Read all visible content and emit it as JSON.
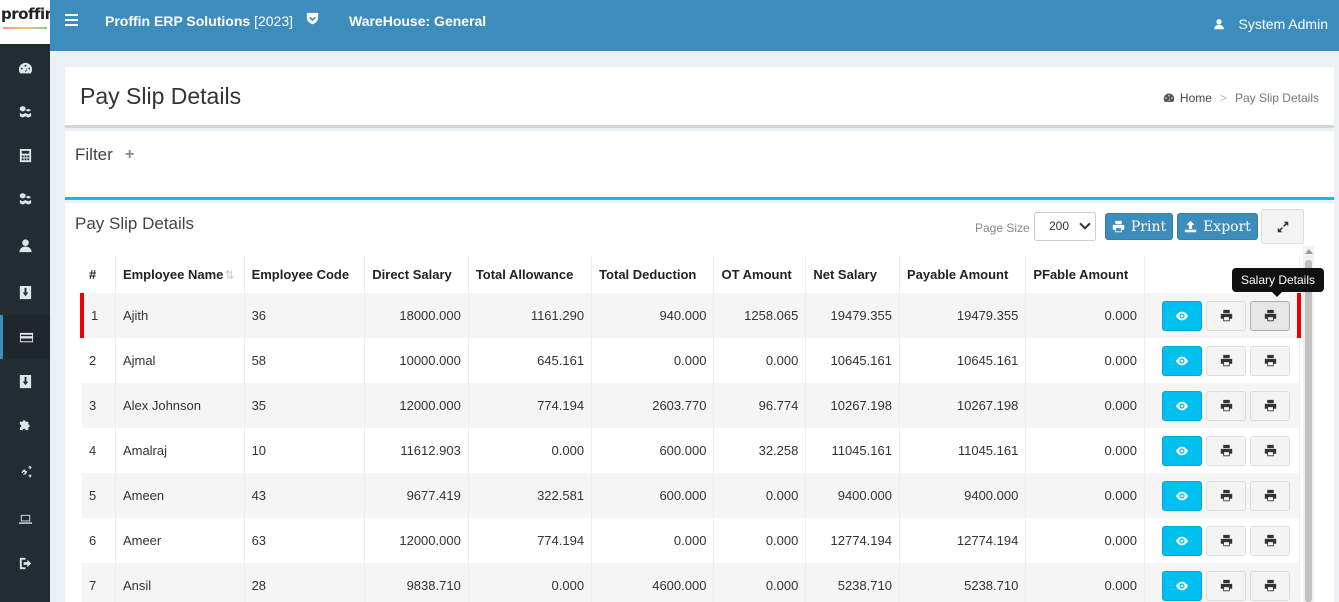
{
  "logo": {
    "text": "proffin"
  },
  "sidebar": {
    "items": [
      {
        "icon": "dashboard-icon"
      },
      {
        "icon": "cubes-icon"
      },
      {
        "icon": "calculator-icon"
      },
      {
        "icon": "cubes-icon"
      },
      {
        "icon": "user-icon"
      },
      {
        "icon": "download-icon"
      },
      {
        "icon": "credit-card-icon",
        "active": true
      },
      {
        "icon": "download-icon"
      },
      {
        "icon": "puzzle-icon"
      },
      {
        "icon": "cogs-icon"
      },
      {
        "icon": "laptop-icon"
      },
      {
        "icon": "sign-out-icon"
      }
    ]
  },
  "header": {
    "company": "Proffin ERP Solutions",
    "year": "[2023]",
    "warehouse": "WareHouse: General",
    "user": "System Admin"
  },
  "page": {
    "title": "Pay Slip Details",
    "breadcrumb": {
      "home": "Home",
      "separator": ">",
      "current": "Pay Slip Details"
    }
  },
  "filter": {
    "title": "Filter",
    "toggle": "+"
  },
  "box": {
    "title": "Pay Slip Details",
    "page_size_label": "Page Size",
    "page_size_value": "200",
    "print_label": "Print",
    "export_label": "Export"
  },
  "tooltip": {
    "text": "Salary Details"
  },
  "table": {
    "columns": [
      "#",
      "Employee Name",
      "Employee Code",
      "Direct Salary",
      "Total Allowance",
      "Total Deduction",
      "OT Amount",
      "Net Salary",
      "Payable Amount",
      "PFable Amount",
      ""
    ],
    "rows": [
      [
        "1",
        "Ajith",
        "36",
        "18000.000",
        "1161.290",
        "940.000",
        "1258.065",
        "19479.355",
        "19479.355",
        "0.000"
      ],
      [
        "2",
        "Ajmal",
        "58",
        "10000.000",
        "645.161",
        "0.000",
        "0.000",
        "10645.161",
        "10645.161",
        "0.000"
      ],
      [
        "3",
        "Alex Johnson",
        "35",
        "12000.000",
        "774.194",
        "2603.770",
        "96.774",
        "10267.198",
        "10267.198",
        "0.000"
      ],
      [
        "4",
        "Amalraj",
        "10",
        "11612.903",
        "0.000",
        "600.000",
        "32.258",
        "11045.161",
        "11045.161",
        "0.000"
      ],
      [
        "5",
        "Ameen",
        "43",
        "9677.419",
        "322.581",
        "600.000",
        "0.000",
        "9400.000",
        "9400.000",
        "0.000"
      ],
      [
        "6",
        "Ameer",
        "63",
        "12000.000",
        "774.194",
        "0.000",
        "0.000",
        "12774.194",
        "12774.194",
        "0.000"
      ],
      [
        "7",
        "Ansil",
        "28",
        "9838.710",
        "0.000",
        "4600.000",
        "0.000",
        "5238.710",
        "5238.710",
        "0.000"
      ]
    ]
  },
  "colors": {
    "header": "#3c8dbc",
    "sidebar": "#222d32",
    "view_button": "#00c0ef",
    "filter_accent": "#00c0ef",
    "selected_row_marker": "#ee0000"
  }
}
